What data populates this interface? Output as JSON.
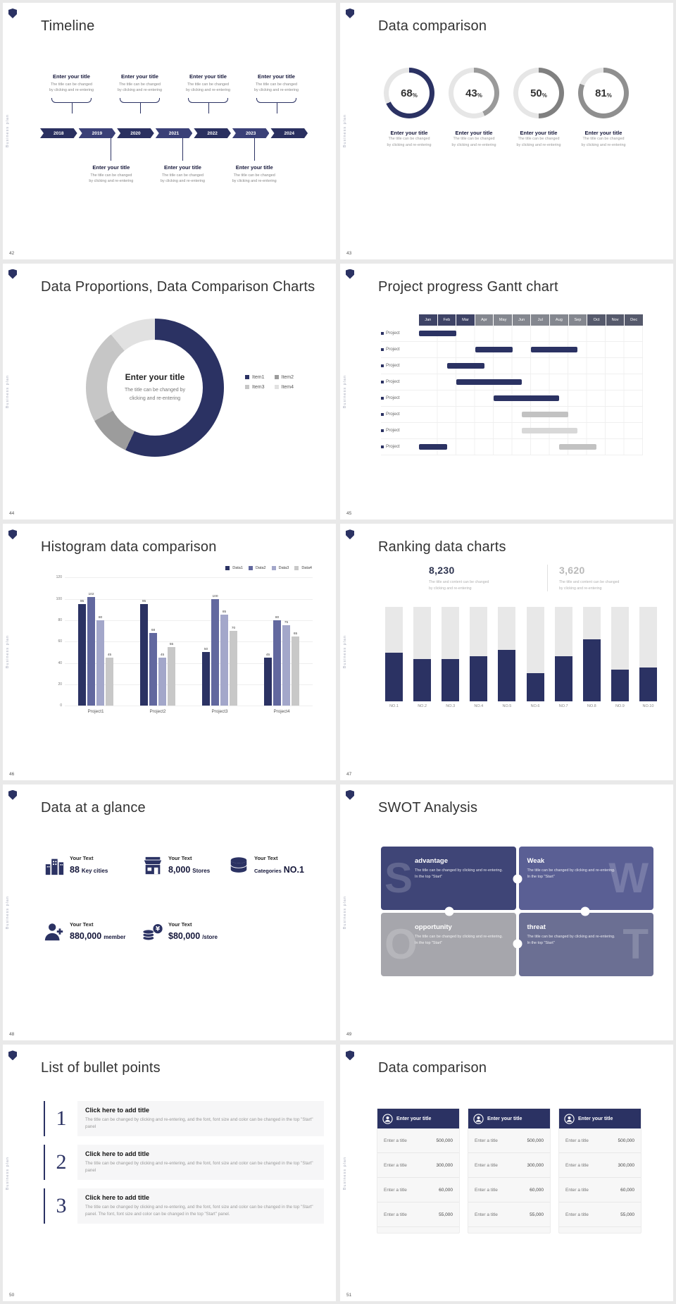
{
  "board": {
    "background": "#e9e9e9",
    "accent": "#2b3263",
    "brand_vertical": "Business plan"
  },
  "timeline": {
    "page": "42",
    "title": "Timeline",
    "top_items": [
      {
        "title": "Enter your title",
        "line1": "The title can be changed",
        "line2": "by clicking and re-entering"
      },
      {
        "title": "Enter your title",
        "line1": "The title can be changed",
        "line2": "by clicking and re-entering"
      },
      {
        "title": "Enter your title",
        "line1": "The title can be changed",
        "line2": "by clicking and re-entering"
      },
      {
        "title": "Enter your title",
        "line1": "The title can be changed",
        "line2": "by clicking and re-entering"
      }
    ],
    "years": [
      "2018",
      "2019",
      "2020",
      "2021",
      "2022",
      "2023",
      "2024"
    ],
    "bottom_items": [
      {
        "title": "Enter your title",
        "line1": "The title can be changed",
        "line2": "by clicking and re-entering"
      },
      {
        "title": "Enter your title",
        "line1": "The title can be changed",
        "line2": "by clicking and re-entering"
      },
      {
        "title": "Enter your title",
        "line1": "The title can be changed",
        "line2": "by clicking and re-entering"
      }
    ]
  },
  "comparison_rings": {
    "page": "43",
    "title": "Data comparison",
    "track_color": "#e6e6e6",
    "rings": [
      {
        "label": "68",
        "unit": "%",
        "value": 68,
        "color": "#2b3263",
        "title": "Enter your title",
        "line1": "The title can be changed",
        "line2": "by clicking and re-entering"
      },
      {
        "label": "43",
        "unit": "%",
        "value": 43,
        "color": "#9a9a9a",
        "title": "Enter your title",
        "line1": "The title can be changed",
        "line2": "by clicking and re-entering"
      },
      {
        "label": "50",
        "unit": "%",
        "value": 50,
        "color": "#808080",
        "title": "Enter your title",
        "line1": "The title can be changed",
        "line2": "by clicking and re-entering"
      },
      {
        "label": "81",
        "unit": "%",
        "value": 81,
        "color": "#8f8f8f",
        "title": "Enter your title",
        "line1": "The title can be changed",
        "line2": "by clicking and re-entering"
      }
    ]
  },
  "donut": {
    "page": "44",
    "title": "Data Proportions, Data Comparison Charts",
    "center_title": "Enter your title",
    "center_line1": "The title can be changed by",
    "center_line2": "clicking and re-entering",
    "slices": [
      {
        "name": "Item1",
        "pct": 57,
        "color": "#2b3263"
      },
      {
        "name": "Item2",
        "pct": 10,
        "color": "#9c9c9c"
      },
      {
        "name": "Item3",
        "pct": 22,
        "color": "#c6c6c6"
      },
      {
        "name": "Item4",
        "pct": 11,
        "color": "#e1e1e1"
      }
    ]
  },
  "gantt": {
    "page": "45",
    "title": "Project progress Gantt chart",
    "months": [
      "Jan",
      "Feb",
      "Mar",
      "Apr",
      "May",
      "Jun",
      "Jul",
      "Aug",
      "Sep",
      "Oct",
      "Nov",
      "Dec"
    ],
    "header_colors": [
      "#3e4366",
      "#3e4366",
      "#3e4366",
      "#84878f",
      "#84878f",
      "#84878f",
      "#84878f",
      "#84878f",
      "#84878f",
      "#565a6c",
      "#565a6c",
      "#565a6c"
    ],
    "colors": {
      "navy": "#2b3263",
      "gray": "#c2c2c2",
      "lightgray": "#d8d8d8"
    },
    "rows": [
      {
        "label": "Project",
        "bars": [
          {
            "start": 1,
            "span": 2,
            "color": "navy"
          }
        ]
      },
      {
        "label": "Project",
        "bars": [
          {
            "start": 4,
            "span": 2,
            "color": "navy"
          },
          {
            "start": 7,
            "span": 2.5,
            "color": "navy"
          }
        ]
      },
      {
        "label": "Project",
        "bars": [
          {
            "start": 2.5,
            "span": 2,
            "color": "navy"
          }
        ]
      },
      {
        "label": "Project",
        "bars": [
          {
            "start": 3,
            "span": 3.5,
            "color": "navy"
          }
        ]
      },
      {
        "label": "Project",
        "bars": [
          {
            "start": 5,
            "span": 3.5,
            "color": "navy"
          }
        ]
      },
      {
        "label": "Project",
        "bars": [
          {
            "start": 6.5,
            "span": 2.5,
            "color": "gray"
          }
        ]
      },
      {
        "label": "Project",
        "bars": [
          {
            "start": 6.5,
            "span": 3,
            "color": "lightgray"
          }
        ]
      },
      {
        "label": "Project",
        "bars": [
          {
            "start": 1,
            "span": 1.5,
            "color": "navy"
          },
          {
            "start": 8.5,
            "span": 2,
            "color": "gray"
          }
        ]
      }
    ]
  },
  "histogram": {
    "page": "46",
    "title": "Histogram data comparison",
    "legend": [
      "Data1",
      "Data2",
      "Data3",
      "Data4"
    ],
    "palette": [
      "#2b3263",
      "#62689f",
      "#a3a7ca",
      "#c8c8c8"
    ],
    "categories": [
      "Project1",
      "Project2",
      "Project3",
      "Project4"
    ],
    "values": [
      [
        95,
        102,
        80,
        45
      ],
      [
        95,
        68,
        45,
        55
      ],
      [
        50,
        100,
        85,
        70
      ],
      [
        45,
        80,
        75,
        65
      ]
    ],
    "y_ticks": [
      0,
      20,
      40,
      60,
      80,
      100,
      120
    ],
    "y_max": 120
  },
  "ranking": {
    "page": "47",
    "title": "Ranking data charts",
    "stats": [
      {
        "value": "8,230",
        "color": "#2f3550",
        "line1": "The title and content can be changed",
        "line2": "by clicking and re-entering"
      },
      {
        "value": "3,620",
        "color": "#b9b9b9",
        "line1": "The title and content can be changed",
        "line2": "by clicking and re-entering"
      }
    ],
    "bar_color": "#2b3263",
    "track_color": "#e8e8e8",
    "max": 100,
    "bars": [
      {
        "label": "NO.1",
        "value": 52
      },
      {
        "label": "NO.2",
        "value": 45
      },
      {
        "label": "NO.3",
        "value": 45
      },
      {
        "label": "NO.4",
        "value": 48
      },
      {
        "label": "NO.5",
        "value": 55
      },
      {
        "label": "NO.6",
        "value": 30
      },
      {
        "label": "NO.7",
        "value": 48
      },
      {
        "label": "NO.8",
        "value": 66
      },
      {
        "label": "NO.9",
        "value": 34
      },
      {
        "label": "NO.10",
        "value": 36
      }
    ]
  },
  "glance": {
    "page": "48",
    "title": "Data at a glance",
    "items": [
      {
        "icon": "buildings-icon",
        "label": "Your Text",
        "value": "88",
        "suffix": "Key cities"
      },
      {
        "icon": "store-icon",
        "label": "Your Text",
        "value": "8,000",
        "suffix": "Stores"
      },
      {
        "icon": "category-icon",
        "label": "Your Text",
        "prefix": "Categories",
        "value": "NO.1",
        "suffix": ""
      },
      {
        "icon": "member-icon",
        "label": "Your Text",
        "value": "880,000",
        "suffix": "member"
      },
      {
        "icon": "coins-icon",
        "label": "Your Text",
        "value": "$80,000",
        "suffix": "/store"
      }
    ]
  },
  "swot": {
    "page": "49",
    "title": "SWOT Analysis",
    "quadrants": [
      {
        "letter": "S",
        "letter_side": "left",
        "heading": "advantage",
        "body": "The title can be changed by clicking and re-entering. In the top \"Start\"",
        "color": "#3f4577"
      },
      {
        "letter": "W",
        "letter_side": "right",
        "heading": "Weak",
        "body": "The title can be changed by clicking and re-entering. In the top \"Start\"",
        "color": "#5a5f94"
      },
      {
        "letter": "O",
        "letter_side": "left",
        "heading": "opportunity",
        "body": "The title can be changed by clicking and re-entering. In the top \"Start\"",
        "color": "#a6a6ac"
      },
      {
        "letter": "T",
        "letter_side": "right",
        "heading": "threat",
        "body": "The title can be changed by clicking and re-entering. In the top \"Start\"",
        "color": "#6b6f93"
      }
    ]
  },
  "bullets": {
    "page": "50",
    "title": "List of bullet points",
    "items": [
      {
        "num": "1",
        "heading": "Click here to add title",
        "body": "The title can be changed by clicking and re-entering, and the font, font size and color can be changed in the top \"Start\" panel"
      },
      {
        "num": "2",
        "heading": "Click here to add title",
        "body": "The title can be changed by clicking and re-entering, and the font, font size and color can be changed in the top \"Start\" panel"
      },
      {
        "num": "3",
        "heading": "Click here to add title",
        "body": "The title can be changed by clicking and re-entering, and the font, font size and color can be changed in the top \"Start\" panel. The font, font size and color can be changed in the top \"Start\" panel."
      }
    ]
  },
  "tables": {
    "page": "51",
    "title": "Data comparison",
    "columns": [
      {
        "header": "Enter your title",
        "rows": [
          {
            "label": "Enter a title",
            "value": "500,000"
          },
          {
            "label": "Enter a title",
            "value": "300,000"
          },
          {
            "label": "Enter a title",
            "value": "60,000"
          },
          {
            "label": "Enter a title",
            "value": "55,000"
          }
        ]
      },
      {
        "header": "Enter your title",
        "rows": [
          {
            "label": "Enter a title",
            "value": "500,000"
          },
          {
            "label": "Enter a title",
            "value": "300,000"
          },
          {
            "label": "Enter a title",
            "value": "60,000"
          },
          {
            "label": "Enter a title",
            "value": "55,000"
          }
        ]
      },
      {
        "header": "Enter your title",
        "rows": [
          {
            "label": "Enter a title",
            "value": "500,000"
          },
          {
            "label": "Enter a title",
            "value": "300,000"
          },
          {
            "label": "Enter a title",
            "value": "60,000"
          },
          {
            "label": "Enter a title",
            "value": "55,000"
          }
        ]
      }
    ]
  }
}
